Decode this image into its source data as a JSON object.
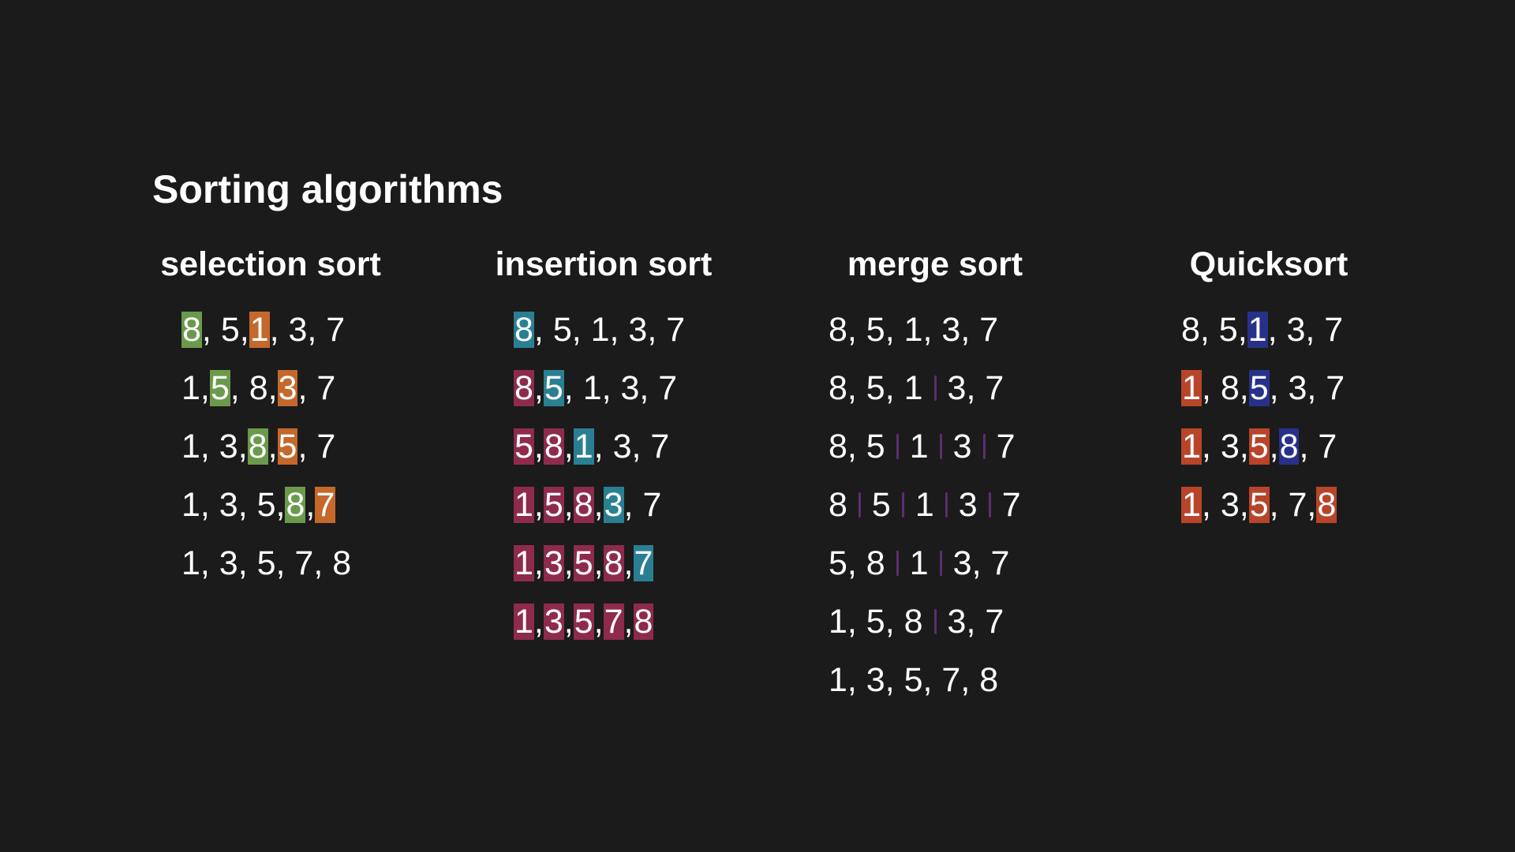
{
  "title": "Sorting algorithms",
  "colors": {
    "background": "#1b1b1b",
    "text": "#ffffff",
    "selection_min": "#6a9a4b",
    "selection_swap": "#c4682b",
    "insertion_sorted": "#8e2b4d",
    "insertion_current": "#2a7f92",
    "merge_divider": "#5b2e70",
    "quick_pivot": "#28318a",
    "quick_placed": "#b8442a"
  },
  "columns": [
    {
      "key": "selection",
      "header": "selection sort",
      "rows": [
        [
          {
            "t": "8",
            "hl": "selection_min"
          },
          {
            "t": ", 5, "
          },
          {
            "t": "1",
            "hl": "selection_swap"
          },
          {
            "t": ", 3, 7"
          }
        ],
        [
          {
            "t": "1, "
          },
          {
            "t": "5",
            "hl": "selection_min"
          },
          {
            "t": ", 8, "
          },
          {
            "t": "3",
            "hl": "selection_swap"
          },
          {
            "t": ", 7"
          }
        ],
        [
          {
            "t": "1, 3, "
          },
          {
            "t": "8",
            "hl": "selection_min"
          },
          {
            "t": ", "
          },
          {
            "t": "5",
            "hl": "selection_swap"
          },
          {
            "t": ", 7"
          }
        ],
        [
          {
            "t": "1, 3, 5, "
          },
          {
            "t": "8",
            "hl": "selection_min"
          },
          {
            "t": ", "
          },
          {
            "t": "7",
            "hl": "selection_swap"
          }
        ],
        [
          {
            "t": "1, 3, 5, 7, 8"
          }
        ]
      ]
    },
    {
      "key": "insertion",
      "header": "insertion sort",
      "rows": [
        [
          {
            "t": "8",
            "hl": "insertion_current"
          },
          {
            "t": ", 5, 1, 3, 7"
          }
        ],
        [
          {
            "t": "8",
            "hl": "insertion_sorted"
          },
          {
            "t": ", "
          },
          {
            "t": "5",
            "hl": "insertion_current"
          },
          {
            "t": ", 1, 3, 7"
          }
        ],
        [
          {
            "t": "5",
            "hl": "insertion_sorted"
          },
          {
            "t": ", "
          },
          {
            "t": "8",
            "hl": "insertion_sorted"
          },
          {
            "t": ", "
          },
          {
            "t": "1",
            "hl": "insertion_current"
          },
          {
            "t": ", 3, 7"
          }
        ],
        [
          {
            "t": "1",
            "hl": "insertion_sorted"
          },
          {
            "t": ", "
          },
          {
            "t": "5",
            "hl": "insertion_sorted"
          },
          {
            "t": ", "
          },
          {
            "t": "8",
            "hl": "insertion_sorted"
          },
          {
            "t": ", "
          },
          {
            "t": "3",
            "hl": "insertion_current"
          },
          {
            "t": ", 7"
          }
        ],
        [
          {
            "t": "1",
            "hl": "insertion_sorted"
          },
          {
            "t": ", "
          },
          {
            "t": "3",
            "hl": "insertion_sorted"
          },
          {
            "t": ", "
          },
          {
            "t": "5",
            "hl": "insertion_sorted"
          },
          {
            "t": ", "
          },
          {
            "t": "8",
            "hl": "insertion_sorted"
          },
          {
            "t": ", "
          },
          {
            "t": "7",
            "hl": "insertion_current"
          }
        ],
        [
          {
            "t": "1",
            "hl": "insertion_sorted"
          },
          {
            "t": ", "
          },
          {
            "t": "3",
            "hl": "insertion_sorted"
          },
          {
            "t": ", "
          },
          {
            "t": "5",
            "hl": "insertion_sorted"
          },
          {
            "t": ", "
          },
          {
            "t": "7",
            "hl": "insertion_sorted"
          },
          {
            "t": ", "
          },
          {
            "t": "8",
            "hl": "insertion_sorted"
          }
        ]
      ]
    },
    {
      "key": "merge",
      "header": "merge sort",
      "rows": [
        [
          {
            "t": "8, 5, 1, 3, 7"
          }
        ],
        [
          {
            "t": "8, 5, 1"
          },
          {
            "sep": true
          },
          {
            "t": "3, 7"
          }
        ],
        [
          {
            "t": "8, 5"
          },
          {
            "sep": true
          },
          {
            "t": "1"
          },
          {
            "sep": true
          },
          {
            "t": "3"
          },
          {
            "sep": true
          },
          {
            "t": "7"
          }
        ],
        [
          {
            "t": "8"
          },
          {
            "sep": true
          },
          {
            "t": "5"
          },
          {
            "sep": true
          },
          {
            "t": "1"
          },
          {
            "sep": true
          },
          {
            "t": "3"
          },
          {
            "sep": true
          },
          {
            "t": "7"
          }
        ],
        [
          {
            "t": "5, 8"
          },
          {
            "sep": true
          },
          {
            "t": "1"
          },
          {
            "sep": true
          },
          {
            "t": "3, 7"
          }
        ],
        [
          {
            "t": "1, 5, 8"
          },
          {
            "sep": true
          },
          {
            "t": "3, 7"
          }
        ],
        [
          {
            "t": "1, 3, 5, 7, 8"
          }
        ]
      ]
    },
    {
      "key": "quick",
      "header": "Quicksort",
      "rows": [
        [
          {
            "t": "8, 5, "
          },
          {
            "t": "1",
            "hl": "quick_pivot"
          },
          {
            "t": ", 3, 7"
          }
        ],
        [
          {
            "t": "1",
            "hl": "quick_placed"
          },
          {
            "t": ", 8, "
          },
          {
            "t": "5",
            "hl": "quick_pivot"
          },
          {
            "t": ", 3, 7"
          }
        ],
        [
          {
            "t": "1",
            "hl": "quick_placed"
          },
          {
            "t": ", 3, "
          },
          {
            "t": "5",
            "hl": "quick_placed"
          },
          {
            "t": ", "
          },
          {
            "t": "8",
            "hl": "quick_pivot"
          },
          {
            "t": ", 7"
          }
        ],
        [
          {
            "t": "1",
            "hl": "quick_placed"
          },
          {
            "t": ", 3, "
          },
          {
            "t": "5",
            "hl": "quick_placed"
          },
          {
            "t": ", 7, "
          },
          {
            "t": "8",
            "hl": "quick_placed"
          }
        ]
      ]
    }
  ]
}
